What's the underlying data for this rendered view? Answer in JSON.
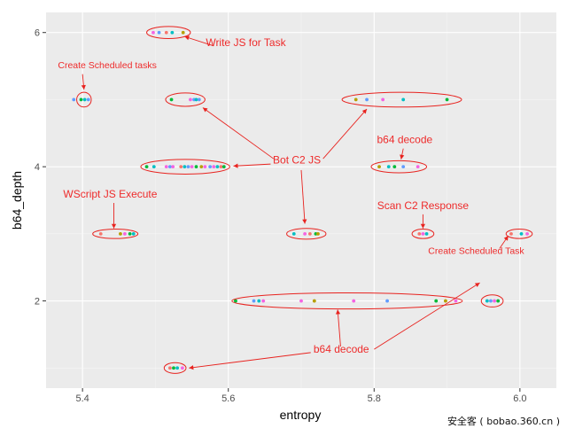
{
  "chart_data": {
    "type": "scatter",
    "xlabel": "entropy",
    "ylabel": "b64_depth",
    "xlim": [
      5.35,
      6.05
    ],
    "ylim": [
      0.7,
      6.3
    ],
    "x_ticks": [
      "5.4",
      "5.6",
      "5.8",
      "6.0"
    ],
    "y_ticks": [
      "2",
      "4",
      "6"
    ],
    "x_tick_values": [
      5.4,
      5.6,
      5.8,
      6.0
    ],
    "y_tick_values": [
      2,
      4,
      6
    ],
    "grid": true,
    "palette": [
      "#F8766D",
      "#B79F00",
      "#00BA38",
      "#00BFC4",
      "#619CFF",
      "#F564E3"
    ],
    "points": [
      {
        "x": 5.497,
        "y": 6,
        "c": 5
      },
      {
        "x": 5.505,
        "y": 6,
        "c": 4
      },
      {
        "x": 5.515,
        "y": 6,
        "c": 0
      },
      {
        "x": 5.523,
        "y": 6,
        "c": 3
      },
      {
        "x": 5.538,
        "y": 6,
        "c": 1
      },
      {
        "x": 5.388,
        "y": 5,
        "c": 4
      },
      {
        "x": 5.398,
        "y": 5,
        "c": 2
      },
      {
        "x": 5.403,
        "y": 5,
        "c": 3
      },
      {
        "x": 5.408,
        "y": 5,
        "c": 4
      },
      {
        "x": 5.522,
        "y": 5,
        "c": 2
      },
      {
        "x": 5.548,
        "y": 5,
        "c": 5
      },
      {
        "x": 5.553,
        "y": 5,
        "c": 4
      },
      {
        "x": 5.556,
        "y": 5,
        "c": 3
      },
      {
        "x": 5.56,
        "y": 5,
        "c": 4
      },
      {
        "x": 5.775,
        "y": 5,
        "c": 1
      },
      {
        "x": 5.79,
        "y": 5,
        "c": 4
      },
      {
        "x": 5.812,
        "y": 5,
        "c": 5
      },
      {
        "x": 5.84,
        "y": 5,
        "c": 3
      },
      {
        "x": 5.9,
        "y": 5,
        "c": 2
      },
      {
        "x": 5.488,
        "y": 4,
        "c": 2
      },
      {
        "x": 5.498,
        "y": 4,
        "c": 3
      },
      {
        "x": 5.515,
        "y": 4,
        "c": 5
      },
      {
        "x": 5.52,
        "y": 4,
        "c": 4
      },
      {
        "x": 5.524,
        "y": 4,
        "c": 5
      },
      {
        "x": 5.535,
        "y": 4,
        "c": 0
      },
      {
        "x": 5.54,
        "y": 4,
        "c": 3
      },
      {
        "x": 5.545,
        "y": 4,
        "c": 4
      },
      {
        "x": 5.55,
        "y": 4,
        "c": 5
      },
      {
        "x": 5.556,
        "y": 4,
        "c": 2
      },
      {
        "x": 5.563,
        "y": 4,
        "c": 1
      },
      {
        "x": 5.568,
        "y": 4,
        "c": 5
      },
      {
        "x": 5.575,
        "y": 4,
        "c": 4
      },
      {
        "x": 5.58,
        "y": 4,
        "c": 5
      },
      {
        "x": 5.585,
        "y": 4,
        "c": 3
      },
      {
        "x": 5.59,
        "y": 4,
        "c": 0
      },
      {
        "x": 5.594,
        "y": 4,
        "c": 2
      },
      {
        "x": 5.807,
        "y": 4,
        "c": 1
      },
      {
        "x": 5.82,
        "y": 4,
        "c": 3
      },
      {
        "x": 5.828,
        "y": 4,
        "c": 2
      },
      {
        "x": 5.84,
        "y": 4,
        "c": 4
      },
      {
        "x": 5.86,
        "y": 4,
        "c": 5
      },
      {
        "x": 5.425,
        "y": 3,
        "c": 0
      },
      {
        "x": 5.452,
        "y": 3,
        "c": 1
      },
      {
        "x": 5.458,
        "y": 3,
        "c": 5
      },
      {
        "x": 5.465,
        "y": 3,
        "c": 2
      },
      {
        "x": 5.47,
        "y": 3,
        "c": 3
      },
      {
        "x": 5.69,
        "y": 3,
        "c": 3
      },
      {
        "x": 5.705,
        "y": 3,
        "c": 5
      },
      {
        "x": 5.712,
        "y": 3,
        "c": 0
      },
      {
        "x": 5.72,
        "y": 3,
        "c": 2
      },
      {
        "x": 5.723,
        "y": 3,
        "c": 1
      },
      {
        "x": 5.862,
        "y": 3,
        "c": 0
      },
      {
        "x": 5.867,
        "y": 3,
        "c": 5
      },
      {
        "x": 5.872,
        "y": 3,
        "c": 3
      },
      {
        "x": 5.988,
        "y": 3,
        "c": 0
      },
      {
        "x": 6.002,
        "y": 3,
        "c": 3
      },
      {
        "x": 6.01,
        "y": 3,
        "c": 5
      },
      {
        "x": 5.61,
        "y": 2,
        "c": 2
      },
      {
        "x": 5.635,
        "y": 2,
        "c": 4
      },
      {
        "x": 5.642,
        "y": 2,
        "c": 3
      },
      {
        "x": 5.648,
        "y": 2,
        "c": 5
      },
      {
        "x": 5.7,
        "y": 2,
        "c": 5
      },
      {
        "x": 5.718,
        "y": 2,
        "c": 1
      },
      {
        "x": 5.772,
        "y": 2,
        "c": 5
      },
      {
        "x": 5.818,
        "y": 2,
        "c": 4
      },
      {
        "x": 5.885,
        "y": 2,
        "c": 2
      },
      {
        "x": 5.898,
        "y": 2,
        "c": 1
      },
      {
        "x": 5.912,
        "y": 2,
        "c": 5
      },
      {
        "x": 5.955,
        "y": 2,
        "c": 3
      },
      {
        "x": 5.96,
        "y": 2,
        "c": 4
      },
      {
        "x": 5.965,
        "y": 2,
        "c": 5
      },
      {
        "x": 5.97,
        "y": 2,
        "c": 2
      },
      {
        "x": 5.52,
        "y": 1,
        "c": 0
      },
      {
        "x": 5.525,
        "y": 1,
        "c": 2
      },
      {
        "x": 5.53,
        "y": 1,
        "c": 3
      },
      {
        "x": 5.537,
        "y": 1,
        "c": 5
      }
    ],
    "ellipses": [
      {
        "cx": 5.518,
        "cy": 6,
        "rx": 0.03,
        "ry": 0.09
      },
      {
        "cx": 5.402,
        "cy": 5,
        "rx": 0.01,
        "ry": 0.11
      },
      {
        "cx": 5.541,
        "cy": 5,
        "rx": 0.027,
        "ry": 0.1
      },
      {
        "cx": 5.838,
        "cy": 5,
        "rx": 0.082,
        "ry": 0.11
      },
      {
        "cx": 5.541,
        "cy": 4,
        "rx": 0.061,
        "ry": 0.11
      },
      {
        "cx": 5.834,
        "cy": 4,
        "rx": 0.038,
        "ry": 0.09
      },
      {
        "cx": 5.445,
        "cy": 3,
        "rx": 0.031,
        "ry": 0.07
      },
      {
        "cx": 5.707,
        "cy": 3,
        "rx": 0.027,
        "ry": 0.08
      },
      {
        "cx": 5.867,
        "cy": 3,
        "rx": 0.015,
        "ry": 0.07
      },
      {
        "cx": 5.999,
        "cy": 3,
        "rx": 0.018,
        "ry": 0.07
      },
      {
        "cx": 5.763,
        "cy": 2,
        "rx": 0.158,
        "ry": 0.12
      },
      {
        "cx": 5.962,
        "cy": 2,
        "rx": 0.015,
        "ry": 0.09
      },
      {
        "cx": 5.527,
        "cy": 1,
        "rx": 0.015,
        "ry": 0.08
      }
    ],
    "annotations": [
      {
        "label": "Write JS for Task",
        "x": 5.624,
        "y": 5.8,
        "anchor": "middle",
        "arrows": [
          {
            "from": [
              5.58,
              5.8
            ],
            "to": [
              5.54,
              5.94
            ]
          }
        ]
      },
      {
        "label": "Create Scheduled tasks",
        "x": 5.434,
        "y": 5.47,
        "anchor": "middle",
        "arrows": [
          {
            "from": [
              5.4,
              5.38
            ],
            "to": [
              5.402,
              5.15
            ]
          }
        ]
      },
      {
        "label": "Bot C2 JS",
        "x": 5.694,
        "y": 4.05,
        "anchor": "middle",
        "arrows": [
          {
            "from": [
              5.662,
              4.12
            ],
            "to": [
              5.565,
              4.88
            ]
          },
          {
            "from": [
              5.658,
              4.04
            ],
            "to": [
              5.607,
              4.01
            ]
          },
          {
            "from": [
              5.7,
              3.95
            ],
            "to": [
              5.705,
              3.15
            ]
          },
          {
            "from": [
              5.73,
              4.12
            ],
            "to": [
              5.79,
              4.86
            ]
          }
        ]
      },
      {
        "label": "b64 decode",
        "x": 5.842,
        "y": 4.35,
        "anchor": "middle",
        "arrows": [
          {
            "from": [
              5.84,
              4.27
            ],
            "to": [
              5.837,
              4.11
            ]
          }
        ]
      },
      {
        "label": "WScript JS Execute",
        "x": 5.438,
        "y": 3.54,
        "anchor": "middle",
        "arrows": [
          {
            "from": [
              5.443,
              3.46
            ],
            "to": [
              5.443,
              3.08
            ]
          }
        ]
      },
      {
        "label": "Scan C2 Response",
        "x": 5.867,
        "y": 3.37,
        "anchor": "middle",
        "arrows": [
          {
            "from": [
              5.867,
              3.29
            ],
            "to": [
              5.867,
              3.08
            ]
          }
        ]
      },
      {
        "label": "Create Scheduled Task",
        "x": 5.94,
        "y": 2.7,
        "anchor": "middle",
        "arrows": [
          {
            "from": [
              5.972,
              2.78
            ],
            "to": [
              5.984,
              2.97
            ]
          }
        ]
      },
      {
        "label": "b64 decode",
        "x": 5.755,
        "y": 1.23,
        "anchor": "middle",
        "arrows": [
          {
            "from": [
              5.713,
              1.23
            ],
            "to": [
              5.546,
              1.0
            ]
          },
          {
            "from": [
              5.754,
              1.32
            ],
            "to": [
              5.75,
              1.87
            ]
          },
          {
            "from": [
              5.8,
              1.28
            ],
            "to": [
              5.945,
              2.27
            ]
          }
        ]
      }
    ]
  },
  "watermark": "安全客 ( bobao.360.cn )"
}
